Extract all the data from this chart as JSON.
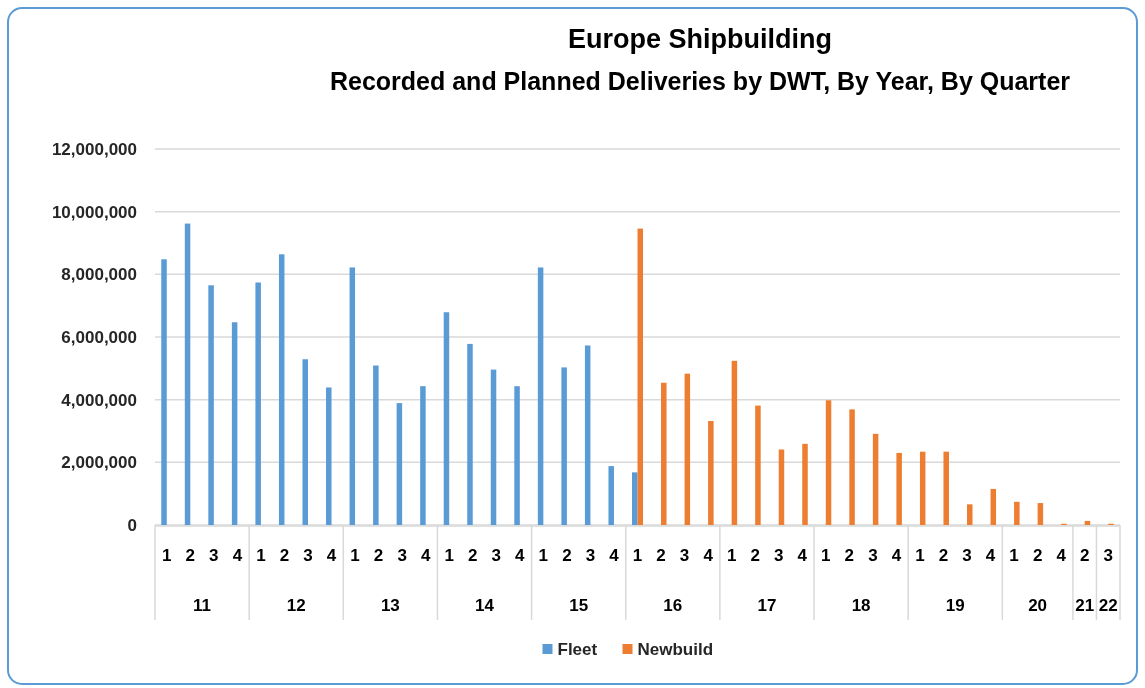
{
  "chart_data": {
    "type": "bar",
    "title": "Europe Shipbuilding",
    "subtitle": "Recorded and  Planned Deliveries by DWT, By Year, By Quarter",
    "categories": [
      "1",
      "2",
      "3",
      "4",
      "1",
      "2",
      "3",
      "4",
      "1",
      "2",
      "3",
      "4",
      "1",
      "2",
      "3",
      "4",
      "1",
      "2",
      "3",
      "4",
      "1",
      "2",
      "3",
      "4",
      "1",
      "2",
      "3",
      "4",
      "1",
      "2",
      "3",
      "4",
      "1",
      "2",
      "3",
      "4",
      "1",
      "2",
      "4",
      "2",
      "3"
    ],
    "annotations": [
      "11",
      "12",
      "13",
      "14",
      "15",
      "16",
      "17",
      "18",
      "19",
      "20",
      "21",
      "22"
    ],
    "series": [
      {
        "name": "Fleet",
        "color": "#5b9bd5",
        "values": [
          8480000,
          9620000,
          7650000,
          6470000,
          7740000,
          8640000,
          5290000,
          4390000,
          8220000,
          5090000,
          3890000,
          4430000,
          6790000,
          5780000,
          4960000,
          4430000,
          8220000,
          5030000,
          5730000,
          1880000,
          1680000,
          null,
          null,
          null,
          null,
          null,
          null,
          null,
          null,
          null,
          null,
          null,
          null,
          null,
          null,
          null,
          null,
          null,
          null,
          null,
          null
        ]
      },
      {
        "name": "Newbuild",
        "color": "#ed7d31",
        "values": [
          null,
          null,
          null,
          null,
          null,
          null,
          null,
          null,
          null,
          null,
          null,
          null,
          null,
          null,
          null,
          null,
          null,
          null,
          null,
          null,
          9460000,
          4540000,
          4830000,
          3320000,
          5240000,
          3810000,
          2410000,
          2590000,
          3980000,
          3690000,
          2910000,
          2300000,
          2340000,
          2340000,
          660000,
          1150000,
          740000,
          700000,
          40000,
          130000,
          40000
        ]
      }
    ],
    "ylim": [
      0,
      12000000
    ],
    "yticks": [
      {
        "value": 0,
        "label": "0"
      },
      {
        "value": 2000000,
        "label": "2,000,000"
      },
      {
        "value": 4000000,
        "label": "4,000,000"
      },
      {
        "value": 6000000,
        "label": "6,000,000"
      },
      {
        "value": 8000000,
        "label": "8,000,000"
      },
      {
        "value": 10000000,
        "label": "10,000,000"
      },
      {
        "value": 12000000,
        "label": "12,000,000"
      }
    ],
    "grid": "y",
    "legend": "bottom"
  }
}
